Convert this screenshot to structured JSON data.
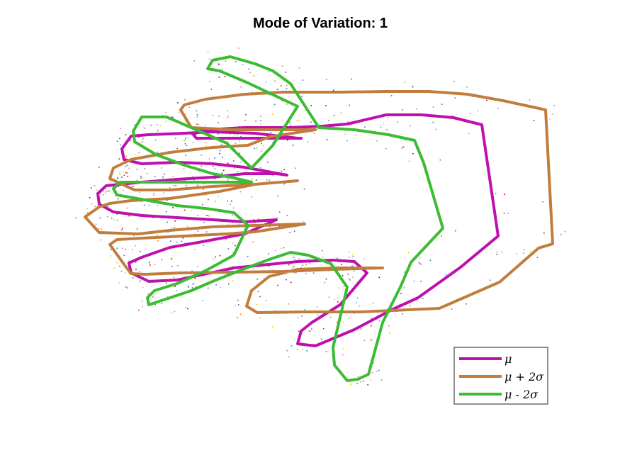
{
  "chart_data": {
    "type": "line",
    "title": "Mode of Variation: 1",
    "axes_visible": false,
    "legend_position": "bottom-right",
    "series": [
      {
        "name": "μ",
        "color": "#bf10ae",
        "x": [
          425,
          330,
          277,
          273,
          285,
          310,
          345,
          370,
          410,
          455,
          490,
          545,
          595,
          640,
          680,
          703,
          650,
          590,
          555,
          500,
          445,
          420,
          425,
          440,
          480,
          518,
          500,
          470,
          420,
          330,
          250,
          210,
          185,
          182,
          200,
          240,
          280,
          345,
          390,
          345,
          300,
          250,
          200,
          160,
          140,
          138,
          150,
          200,
          250,
          300,
          345,
          390,
          405,
          345,
          300,
          250,
          200,
          175,
          172,
          185,
          210,
          260,
          300,
          360,
          420
        ],
        "y": [
          195,
          195,
          195,
          190,
          183,
          182,
          180,
          180,
          180,
          178,
          175,
          162,
          162,
          166,
          176,
          333,
          377,
          420,
          436,
          465,
          488,
          485,
          467,
          455,
          430,
          385,
          369,
          367,
          369,
          378,
          395,
          397,
          385,
          371,
          363,
          349,
          342,
          330,
          310,
          313,
          310,
          307,
          304,
          299,
          288,
          273,
          262,
          257,
          253,
          250,
          245,
          245,
          247,
          236,
          231,
          229,
          231,
          225,
          210,
          192,
          190,
          188,
          186,
          188,
          195
        ]
      },
      {
        "name": "μ + 2σ",
        "color": "#c17d3d",
        "x": [
          445,
          330,
          270,
          255,
          260,
          290,
          345,
          400,
          480,
          545,
          605,
          660,
          710,
          770,
          780,
          760,
          705,
          620,
          510,
          430,
          363,
          348,
          355,
          380,
          420,
          475,
          540,
          470,
          400,
          330,
          255,
          205,
          185,
          178,
          155,
          165,
          200,
          260,
          320,
          360,
          430,
          360,
          300,
          240,
          195,
          140,
          120,
          140,
          155,
          185,
          240,
          310,
          360,
          420,
          360,
          300,
          240,
          190,
          155,
          160,
          185,
          240,
          300,
          350,
          380,
          445
        ],
        "y": [
          183,
          183,
          180,
          155,
          148,
          140,
          133,
          130,
          130,
          129,
          129,
          133,
          142,
          155,
          344,
          350,
          398,
          435,
          440,
          440,
          441,
          432,
          410,
          390,
          380,
          378,
          378,
          380,
          383,
          384,
          385,
          387,
          386,
          377,
          345,
          338,
          336,
          333,
          330,
          327,
          316,
          318,
          320,
          325,
          330,
          328,
          306,
          292,
          287,
          283,
          280,
          270,
          260,
          255,
          260,
          263,
          268,
          268,
          252,
          237,
          225,
          215,
          208,
          205,
          193,
          183
        ]
      },
      {
        "name": "μ - 2σ",
        "color": "#3cbc33",
        "x": [
          420,
          350,
          310,
          293,
          300,
          325,
          360,
          385,
          410,
          450,
          500,
          548,
          585,
          598,
          625,
          580,
          565,
          540,
          525,
          520,
          505,
          490,
          472,
          470,
          490,
          467,
          435,
          410,
          380,
          340,
          300,
          270,
          240,
          210,
          208,
          218,
          250,
          290,
          330,
          350,
          330,
          290,
          250,
          210,
          165,
          160,
          170,
          200,
          245,
          300,
          355,
          330,
          300,
          260,
          220,
          190,
          188,
          200,
          235,
          270,
          320,
          355,
          385,
          420
        ],
        "y": [
          150,
          117,
          100,
          97,
          85,
          80,
          90,
          100,
          118,
          180,
          183,
          190,
          198,
          230,
          322,
          370,
          405,
          455,
          510,
          528,
          535,
          537,
          515,
          490,
          405,
          372,
          360,
          356,
          366,
          381,
          397,
          410,
          420,
          430,
          420,
          410,
          400,
          382,
          360,
          318,
          300,
          294,
          290,
          283,
          275,
          266,
          257,
          257,
          257,
          257,
          257,
          251,
          245,
          233,
          218,
          200,
          185,
          165,
          165,
          180,
          202,
          237,
          205,
          150
        ]
      }
    ]
  },
  "legend": {
    "items": [
      {
        "label": "μ",
        "color": "#bf10ae"
      },
      {
        "label": "μ + 2σ",
        "color": "#c17d3d"
      },
      {
        "label": "μ - 2σ",
        "color": "#3cbc33"
      }
    ]
  }
}
